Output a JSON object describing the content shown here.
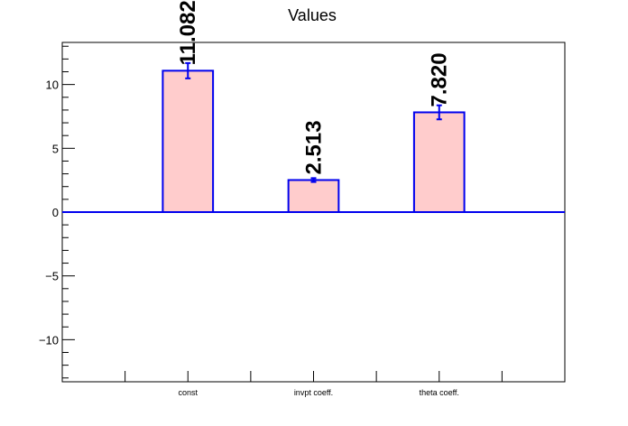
{
  "chart_data": {
    "type": "bar",
    "title": "Values",
    "xlabel": "",
    "ylabel": "",
    "categories": [
      "const",
      "invpt coeff.",
      "theta coeff."
    ],
    "values": [
      11.082,
      2.513,
      7.82
    ],
    "value_labels": [
      "11.082",
      "2.513",
      "7.820"
    ],
    "errors": [
      0.6,
      0.15,
      0.55
    ],
    "ylim": [
      -13.3,
      13.3
    ],
    "yticks": [
      -10,
      -5,
      0,
      5,
      10
    ],
    "ytick_labels": [
      "−10",
      "−5",
      "0",
      "5",
      "10"
    ],
    "grid": false,
    "legend": "none",
    "colors": {
      "bar_fill": "#ffcccc",
      "bar_edge": "#0000ee",
      "zero_line": "#0000ee",
      "axis": "#000000"
    }
  }
}
